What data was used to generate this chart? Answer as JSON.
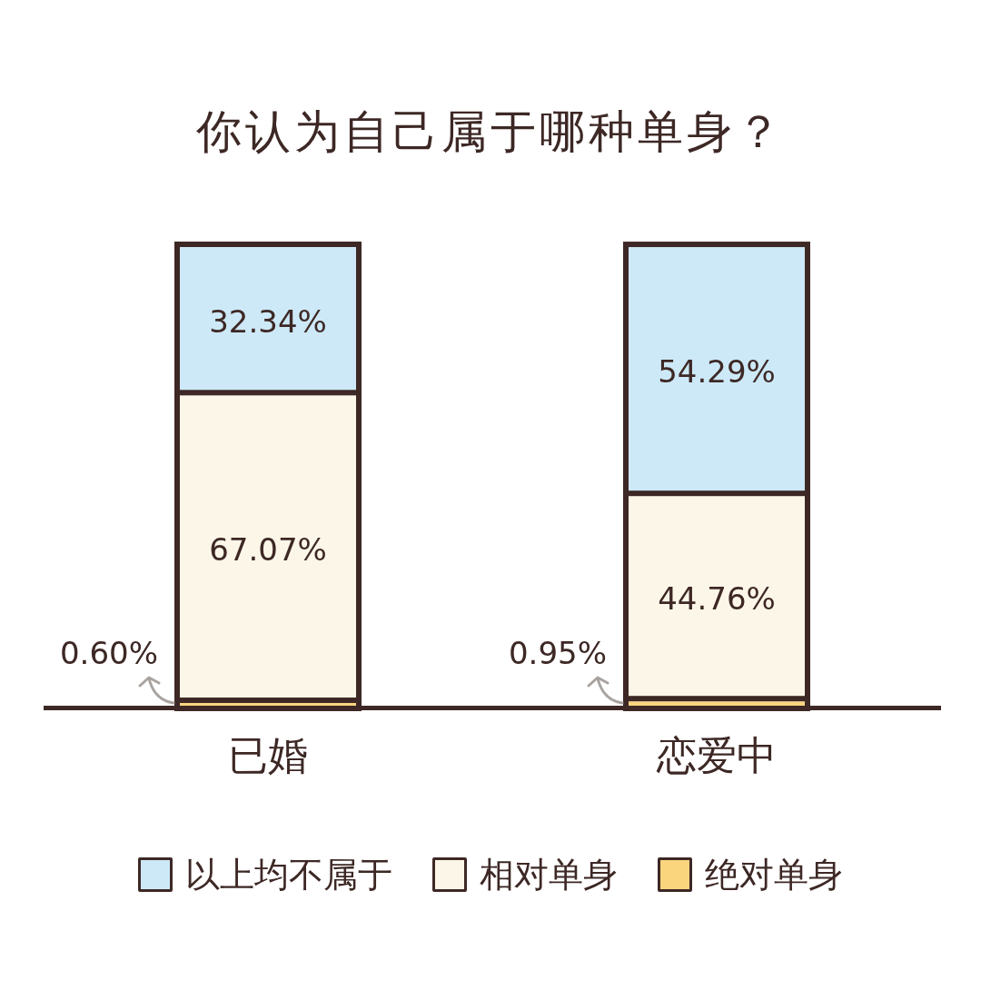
{
  "chart_data": {
    "type": "bar",
    "title": "你认为自己属于哪种单身？",
    "categories": [
      "已婚",
      "恋爱中"
    ],
    "stacked": true,
    "series": [
      {
        "name": "绝对单身",
        "color": "#fbd57e",
        "values": [
          0.6,
          0.95
        ],
        "value_labels": [
          "0.60%",
          "0.95%"
        ]
      },
      {
        "name": "相对单身",
        "color": "#fcf6e8",
        "values": [
          67.07,
          44.76
        ],
        "value_labels": [
          "67.07%",
          "44.76%"
        ]
      },
      {
        "name": "以上均不属于",
        "color": "#cde9f7",
        "values": [
          32.34,
          54.29
        ],
        "value_labels": [
          "32.34%",
          "54.29%"
        ]
      }
    ],
    "legend": "bottom",
    "tick_labels": "x"
  }
}
